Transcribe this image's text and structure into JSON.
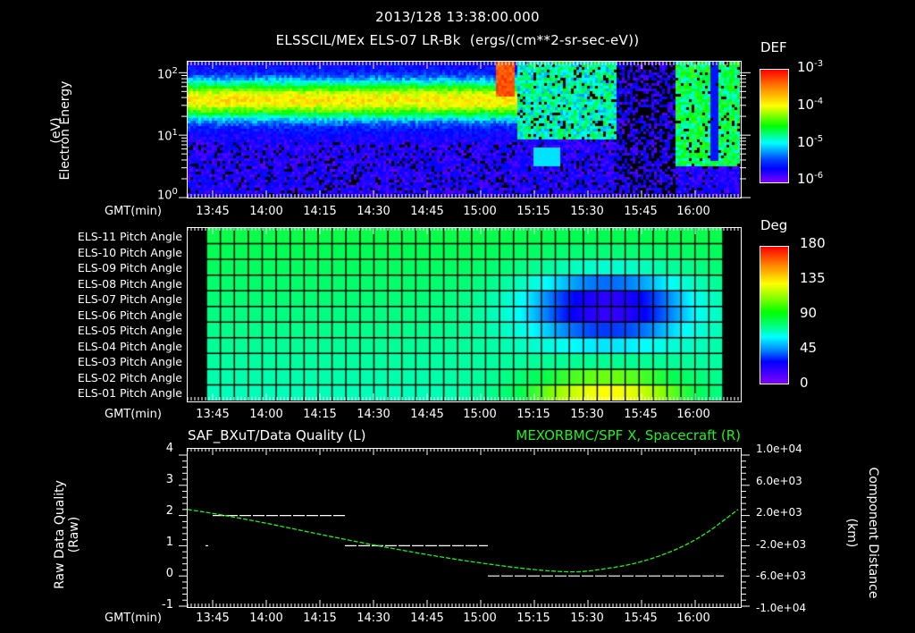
{
  "header": {
    "timestamp": "2013/128 13:38:00.000",
    "subtitle": "ELSSCIL/MEx ELS-07 LR-Bk  (ergs/(cm**2-sr-sec-eV))"
  },
  "time_axis": {
    "label": "GMT(min)",
    "ticks": [
      "13:45",
      "14:00",
      "14:15",
      "14:30",
      "14:45",
      "15:00",
      "15:15",
      "15:30",
      "15:45",
      "16:00"
    ]
  },
  "panel1": {
    "ylabel": "Electron Energy",
    "yunit": "(eV)",
    "yticks": [
      {
        "base": "10",
        "exp": "2"
      },
      {
        "base": "10",
        "exp": "1"
      },
      {
        "base": "10",
        "exp": "0"
      }
    ],
    "colorbar": {
      "title": "DEF",
      "ticks": [
        {
          "base": "10",
          "exp": "-3"
        },
        {
          "base": "10",
          "exp": "-4"
        },
        {
          "base": "10",
          "exp": "-5"
        },
        {
          "base": "10",
          "exp": "-6"
        }
      ]
    }
  },
  "panel2": {
    "rows": [
      "ELS-11 Pitch Angle",
      "ELS-10 Pitch Angle",
      "ELS-09 Pitch Angle",
      "ELS-08 Pitch Angle",
      "ELS-07 Pitch Angle",
      "ELS-06 Pitch Angle",
      "ELS-05 Pitch Angle",
      "ELS-04 Pitch Angle",
      "ELS-03 Pitch Angle",
      "ELS-02 Pitch Angle",
      "ELS-01 Pitch Angle"
    ],
    "colorbar": {
      "title": "Deg",
      "ticks": [
        "180",
        "135",
        "90",
        "45",
        "0"
      ]
    }
  },
  "panel3": {
    "left_title": "SAF_BXuT/Data Quality (L)",
    "right_title": "MEXORBMC/SPF X, Spacecraft (R)",
    "right_title_color": "#22ee22",
    "ylabel_left": "Raw Data Quality",
    "yunit_left": "(Raw)",
    "yticks_left": [
      "4",
      "3",
      "2",
      "1",
      "0",
      "-1"
    ],
    "ylabel_right": "Component Distance",
    "yunit_right": "(km)",
    "yticks_right": [
      "1.0e+04",
      "6.0e+03",
      "2.0e+03",
      "-2.0e+03",
      "-6.0e+03",
      "-1.0e+04"
    ]
  },
  "chart_data": [
    {
      "type": "heatmap",
      "title": "ELSSCIL/MEx ELS-07 LR-Bk (ergs/(cm**2-sr-sec-eV))",
      "xlabel": "GMT(min)",
      "ylabel": "Electron Energy (eV)",
      "yscale": "log",
      "ylim": [
        1,
        150
      ],
      "x_range": [
        "13:38",
        "16:12"
      ],
      "colorbar": {
        "label": "DEF",
        "scale": "log",
        "range": [
          1e-06,
          0.001
        ]
      },
      "features": [
        {
          "time": "13:38-15:10",
          "energy_band_eV": [
            15,
            80
          ],
          "level": "~1e-4 (green/yellow)"
        },
        {
          "time": "15:06-15:09",
          "energy_band_eV": [
            50,
            110
          ],
          "level": "~5e-4 (orange/red)"
        },
        {
          "time": "15:10-15:38",
          "energy_band_eV": [
            5,
            150
          ],
          "level": "~1e-5 (cyan/blue, patchy)"
        },
        {
          "time": "15:38-15:52",
          "level": "near background (sparse)"
        },
        {
          "time": "15:52-16:12",
          "energy_band_eV": [
            3,
            150
          ],
          "level": "~3e-5 (cyan/green)"
        }
      ]
    },
    {
      "type": "heatmap",
      "title": "ELS Pitch Angle",
      "xlabel": "GMT(min)",
      "categories": [
        "ELS-11",
        "ELS-10",
        "ELS-09",
        "ELS-08",
        "ELS-07",
        "ELS-06",
        "ELS-05",
        "ELS-04",
        "ELS-03",
        "ELS-02",
        "ELS-01"
      ],
      "colorbar": {
        "label": "Deg",
        "range": [
          0,
          180
        ]
      },
      "x_range": [
        "13:43",
        "16:08"
      ],
      "features": [
        {
          "time": "13:43-15:10",
          "values_deg": "ELS-11 ~95 decreasing to ELS-01 ~75"
        },
        {
          "time": "15:20-15:55",
          "rows": "ELS-09..ELS-06",
          "values_deg": "~20-35 (minimum ~20 at 15:35-15:45)"
        },
        {
          "time": "15:20-15:55",
          "rows": "ELS-02..ELS-01",
          "values_deg": "~110-135 (max ~135 at 15:35-15:45)"
        }
      ]
    },
    {
      "type": "line",
      "title": "SAF_BXuT/Data Quality (L) / MEXORBMC/SPF X, Spacecraft (R)",
      "xlabel": "GMT(min)",
      "series": [
        {
          "name": "Data Quality (L)",
          "axis": "left",
          "segments": [
            {
              "x": [
                "13:43",
                "13:43"
              ],
              "y": 1
            },
            {
              "x": [
                "13:45",
                "14:22"
              ],
              "y": 2
            },
            {
              "x": [
                "14:22",
                "15:02"
              ],
              "y": 1
            },
            {
              "x": [
                "15:02",
                "16:08"
              ],
              "y": 0
            }
          ]
        },
        {
          "name": "SPF X (R)",
          "axis": "right",
          "unit": "km",
          "x": [
            "13:38",
            "13:45",
            "14:00",
            "14:15",
            "14:30",
            "14:45",
            "15:00",
            "15:15",
            "15:25",
            "15:30",
            "15:45",
            "16:00",
            "16:12"
          ],
          "values": [
            2800,
            2300,
            1000,
            -500,
            -1900,
            -3200,
            -4300,
            -5200,
            -5500,
            -5400,
            -4300,
            -1500,
            2800
          ]
        }
      ],
      "ylim_left": [
        -1,
        4
      ],
      "ylim_right": [
        -10000,
        10000
      ]
    }
  ]
}
